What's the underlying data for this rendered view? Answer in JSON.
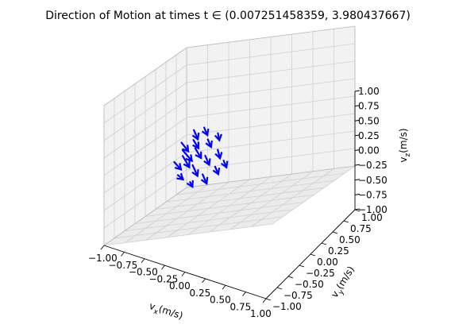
{
  "chart_data": {
    "type": "3d-quiver",
    "title": "Direction of Motion at times t ∈ (0.007251458359, 3.980437667)",
    "xlabel": {
      "base": "v",
      "sub": "x",
      "unit": "(m/s)"
    },
    "ylabel": {
      "base": "v",
      "sub": "y",
      "unit": "(m/s)"
    },
    "zlabel": {
      "base": "v",
      "sub": "z",
      "unit": "(m/s)"
    },
    "xlim": [
      -1.0,
      1.0
    ],
    "ylim": [
      -1.0,
      1.0
    ],
    "zlim": [
      -1.0,
      1.0
    ],
    "x_ticks": [
      "−1.00",
      "−0.75",
      "−0.50",
      "−0.25",
      "0.00",
      "0.25",
      "0.50",
      "0.75",
      "1.00"
    ],
    "y_ticks": [
      "−1.00",
      "−0.75",
      "−0.50",
      "−0.25",
      "0.00",
      "0.25",
      "0.50",
      "0.75",
      "1.00"
    ],
    "z_ticks": [
      "−1.00",
      "−0.75",
      "−0.50",
      "−0.25",
      "0.00",
      "0.25",
      "0.50",
      "0.75",
      "1.00"
    ],
    "grid": true,
    "series_color": "#0000ff",
    "pane_color": "#f2f2f2",
    "arrows": [
      {
        "x": -0.62,
        "y": 0.05,
        "z": 0.12,
        "u": 0.6,
        "v": -0.4,
        "w": -0.1
      },
      {
        "x": -0.58,
        "y": 0.0,
        "z": 0.05,
        "u": 0.8,
        "v": -0.5,
        "w": -0.1
      },
      {
        "x": -0.55,
        "y": -0.05,
        "z": 0.0,
        "u": 0.7,
        "v": -0.6,
        "w": -0.1
      },
      {
        "x": -0.5,
        "y": 0.1,
        "z": 0.18,
        "u": 0.5,
        "v": -0.4,
        "w": -0.1
      },
      {
        "x": -0.45,
        "y": 0.05,
        "z": 0.1,
        "u": 0.6,
        "v": -0.5,
        "w": -0.1
      },
      {
        "x": -0.4,
        "y": -0.1,
        "z": -0.05,
        "u": 0.6,
        "v": -0.6,
        "w": -0.1
      },
      {
        "x": -0.35,
        "y": 0.15,
        "z": 0.22,
        "u": 0.4,
        "v": -0.4,
        "w": -0.1
      },
      {
        "x": -0.3,
        "y": 0.0,
        "z": 0.08,
        "u": 0.5,
        "v": -0.5,
        "w": -0.1
      },
      {
        "x": -0.25,
        "y": -0.15,
        "z": -0.1,
        "u": 0.5,
        "v": -0.5,
        "w": -0.1
      },
      {
        "x": -0.2,
        "y": 0.1,
        "z": 0.15,
        "u": 0.4,
        "v": -0.5,
        "w": -0.1
      },
      {
        "x": -0.55,
        "y": 0.2,
        "z": 0.25,
        "u": 0.5,
        "v": -0.5,
        "w": -0.1
      },
      {
        "x": -0.45,
        "y": 0.25,
        "z": 0.3,
        "u": 0.4,
        "v": -0.4,
        "w": -0.1
      },
      {
        "x": -0.35,
        "y": -0.25,
        "z": -0.2,
        "u": 0.3,
        "v": -0.3,
        "w": 0.0
      },
      {
        "x": -0.15,
        "y": -0.05,
        "z": 0.0,
        "u": 0.4,
        "v": -0.4,
        "w": -0.1
      },
      {
        "x": -0.6,
        "y": -0.15,
        "z": -0.05,
        "u": 0.6,
        "v": -0.4,
        "w": 0.0
      },
      {
        "x": -0.1,
        "y": 0.05,
        "z": 0.05,
        "u": 0.35,
        "v": -0.35,
        "w": -0.1
      },
      {
        "x": -0.5,
        "y": -0.25,
        "z": -0.15,
        "u": 0.4,
        "v": -0.2,
        "w": 0.0
      },
      {
        "x": -0.28,
        "y": 0.25,
        "z": 0.28,
        "u": 0.3,
        "v": -0.4,
        "w": -0.1
      }
    ]
  }
}
